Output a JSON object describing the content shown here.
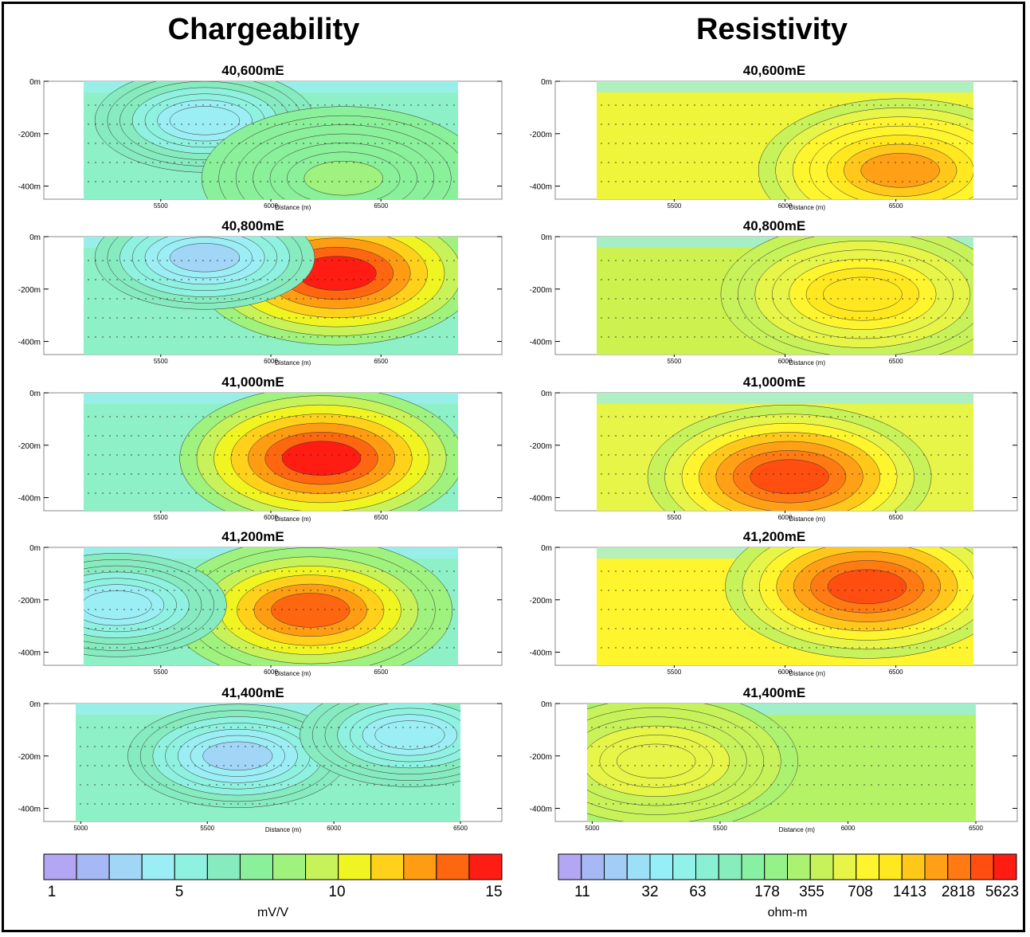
{
  "titles": {
    "left": "Chargeability",
    "right": "Resistivity"
  },
  "depth_ticks": [
    "0m",
    "-200m",
    "-400m"
  ],
  "distance_label": "Distance (m)",
  "chart_data": [
    {
      "type": "heatmap",
      "title": "Chargeability",
      "legend": {
        "unit": "mV/V",
        "tick_labels": [
          "1",
          "5",
          "10",
          "15"
        ],
        "colors": [
          "#b3a6f2",
          "#a6b9f5",
          "#a1d6f7",
          "#9ceef5",
          "#8ff2e0",
          "#86ebbf",
          "#8af09a",
          "#9ef27d",
          "#c8f25a",
          "#f0f521",
          "#ffd11a",
          "#ff9d12",
          "#ff6610",
          "#ff1c12"
        ]
      },
      "sections": [
        {
          "title": "40,600mE",
          "x_ticks": [
            "5500",
            "6000",
            "6500"
          ],
          "ylim": [
            -450,
            0
          ],
          "base": "#8ef0c6",
          "anomalies": [
            {
              "kind": "low",
              "x": 5700,
              "depth": -150,
              "value": 4
            },
            {
              "kind": "high",
              "x": 6330,
              "depth": -370,
              "value": 8
            }
          ]
        },
        {
          "title": "40,800mE",
          "x_ticks": [
            "5500",
            "6000",
            "6500"
          ],
          "ylim": [
            -450,
            0
          ],
          "base": "#8ef0c6",
          "anomalies": [
            {
              "kind": "high",
              "x": 6300,
              "depth": -140,
              "value": 15
            },
            {
              "kind": "low",
              "x": 5700,
              "depth": -80,
              "value": 3
            }
          ]
        },
        {
          "title": "41,000mE",
          "x_ticks": [
            "5500",
            "6000",
            "6500"
          ],
          "ylim": [
            -450,
            0
          ],
          "base": "#8ef0c6",
          "anomalies": [
            {
              "kind": "high",
              "x": 6230,
              "depth": -250,
              "value": 15
            }
          ]
        },
        {
          "title": "41,200mE",
          "x_ticks": [
            "5500",
            "6000",
            "6500"
          ],
          "ylim": [
            -450,
            0
          ],
          "base": "#8ef0c6",
          "anomalies": [
            {
              "kind": "high",
              "x": 6180,
              "depth": -240,
              "value": 14
            },
            {
              "kind": "low",
              "x": 5300,
              "depth": -220,
              "value": 4
            }
          ]
        },
        {
          "title": "41,400mE",
          "x_ticks": [
            "5000",
            "5500",
            "6000",
            "6500"
          ],
          "ylim": [
            -450,
            0
          ],
          "base": "#8ef0c6",
          "anomalies": [
            {
              "kind": "low",
              "x": 5620,
              "depth": -200,
              "value": 3
            },
            {
              "kind": "low",
              "x": 6300,
              "depth": -120,
              "value": 4
            }
          ]
        }
      ]
    },
    {
      "type": "heatmap",
      "title": "Resistivity",
      "legend": {
        "unit": "ohm-m",
        "tick_labels": [
          "11",
          "32",
          "63",
          "178",
          "355",
          "708",
          "1413",
          "2818",
          "5623"
        ],
        "colors": [
          "#b3a6f2",
          "#a6b9f5",
          "#a1cdf7",
          "#9ce0f7",
          "#96eef6",
          "#90f2ea",
          "#8af0d3",
          "#86edbb",
          "#88f0a2",
          "#94f288",
          "#aaf270",
          "#c8f25a",
          "#e6f547",
          "#fff52e",
          "#ffe81f",
          "#ffc81a",
          "#ffa016",
          "#ff7a12",
          "#ff4e10",
          "#ff1c12"
        ]
      },
      "sections": [
        {
          "title": "40,600mE",
          "x_ticks": [
            "5500",
            "6000",
            "6500"
          ],
          "ylim": [
            -450,
            0
          ],
          "base": "#eef53a",
          "anomalies": [
            {
              "kind": "high",
              "x": 6520,
              "depth": -340,
              "value": 2818
            }
          ]
        },
        {
          "title": "40,800mE",
          "x_ticks": [
            "5500",
            "6000",
            "6500"
          ],
          "ylim": [
            -450,
            0
          ],
          "base": "#cdf250",
          "anomalies": [
            {
              "kind": "high",
              "x": 6350,
              "depth": -220,
              "value": 1413
            }
          ]
        },
        {
          "title": "41,000mE",
          "x_ticks": [
            "5500",
            "6000",
            "6500"
          ],
          "ylim": [
            -450,
            0
          ],
          "base": "#e6f547",
          "anomalies": [
            {
              "kind": "high",
              "x": 6020,
              "depth": -320,
              "value": 5623
            }
          ]
        },
        {
          "title": "41,200mE",
          "x_ticks": [
            "5500",
            "6000",
            "6500"
          ],
          "ylim": [
            -450,
            0
          ],
          "base": "#fff52e",
          "anomalies": [
            {
              "kind": "high",
              "x": 6370,
              "depth": -150,
              "value": 5623
            }
          ]
        },
        {
          "title": "41,400mE",
          "x_ticks": [
            "5000",
            "5500",
            "6000",
            "6500"
          ],
          "ylim": [
            -450,
            0
          ],
          "base": "#b6f266",
          "anomalies": [
            {
              "kind": "high",
              "x": 5250,
              "depth": -220,
              "value": 708
            }
          ]
        }
      ]
    }
  ]
}
